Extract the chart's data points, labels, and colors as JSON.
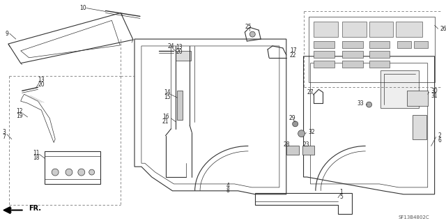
{
  "bg_color": "#ffffff",
  "line_color": "#333333",
  "diagram_code": "SF13B4802C",
  "label_fs": 5.5,
  "lw_main": 0.8,
  "lw_thin": 0.5,
  "lw_dash": 0.6
}
